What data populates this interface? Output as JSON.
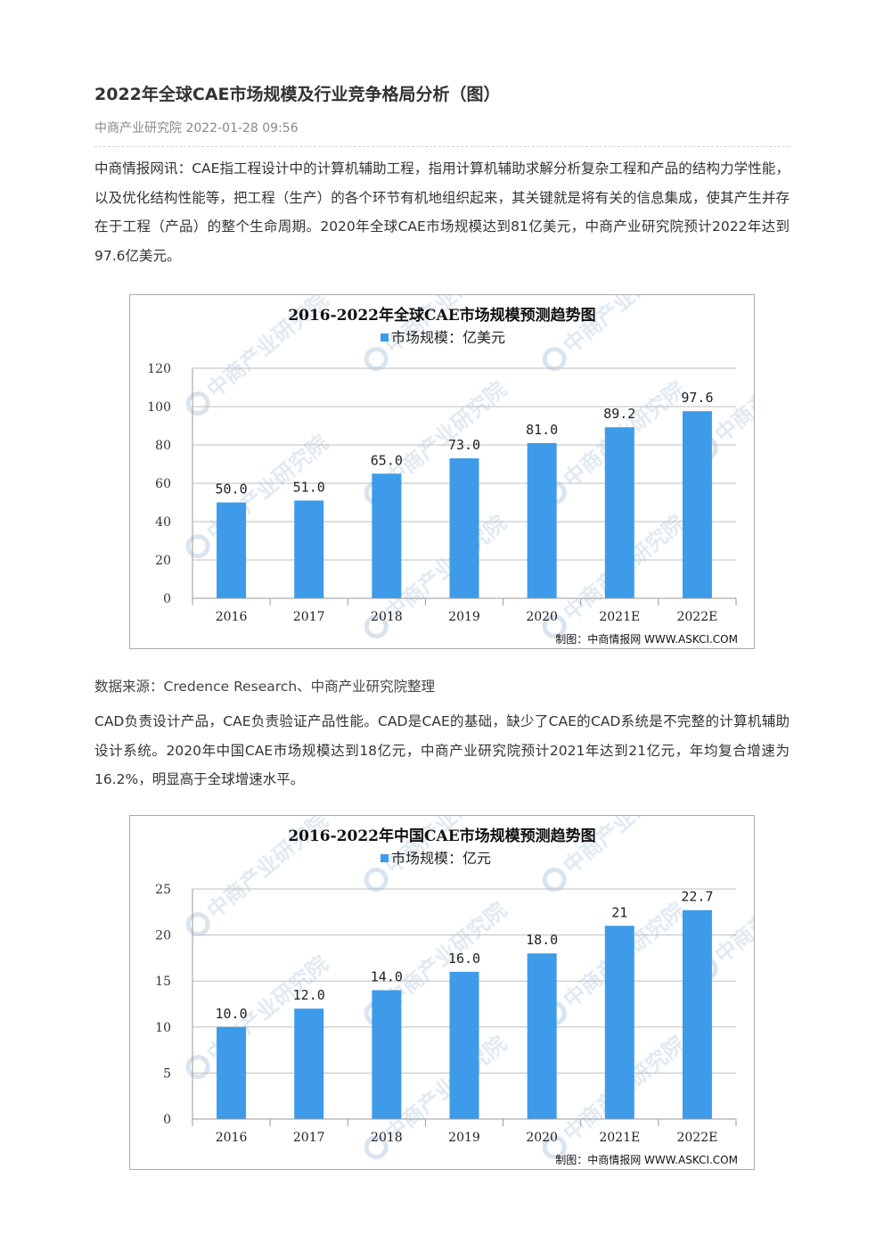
{
  "article": {
    "title": "2022年全球CAE市场规模及行业竞争格局分析（图）",
    "meta": "中商产业研究院 2022-01-28 09:56",
    "para1": "中商情报网讯：CAE指工程设计中的计算机辅助工程，指用计算机辅助求解分析复杂工程和产品的结构力学性能，以及优化结构性能等，把工程（生产）的各个环节有机地组织起来，其关键就是将有关的信息集成，使其产生并存在于工程（产品）的整个生命周期。2020年全球CAE市场规模达到81亿美元，中商产业研究院预计2022年达到97.6亿美元。",
    "source": "数据来源：Credence Research、中商产业研究院整理",
    "para2": "CAD负责设计产品，CAE负责验证产品性能。CAD是CAE的基础，缺少了CAE的CAD系统是不完整的计算机辅助设计系统。2020年中国CAE市场规模达到18亿元，中商产业研究院预计2021年达到21亿元，年均复合增速为16.2%，明显高于全球增速水平。"
  },
  "watermark": "中商产业研究院",
  "chart_data": [
    {
      "type": "bar",
      "title": "2016-2022年全球CAE市场规模预测趋势图",
      "legend": "市场规模：亿美元",
      "categories": [
        "2016",
        "2017",
        "2018",
        "2019",
        "2020",
        "2021E",
        "2022E"
      ],
      "values": [
        50.0,
        51.0,
        65.0,
        73.0,
        81.0,
        89.2,
        97.6
      ],
      "value_labels": [
        "50.0",
        "51.0",
        "65.0",
        "73.0",
        "81.0",
        "89.2",
        "97.6"
      ],
      "yticks": [
        "0",
        "20",
        "40",
        "60",
        "80",
        "100",
        "120"
      ],
      "ylim": [
        0,
        120
      ],
      "credit": "制图：中商情报网 WWW.ASKCI.COM",
      "bar_color": "#3d9bea",
      "grid": true
    },
    {
      "type": "bar",
      "title": "2016-2022年中国CAE市场规模预测趋势图",
      "legend": "市场规模：亿元",
      "categories": [
        "2016",
        "2017",
        "2018",
        "2019",
        "2020",
        "2021E",
        "2022E"
      ],
      "values": [
        10.0,
        12.0,
        14.0,
        16.0,
        18.0,
        21,
        22.7
      ],
      "value_labels": [
        "10.0",
        "12.0",
        "14.0",
        "16.0",
        "18.0",
        "21",
        "22.7"
      ],
      "yticks": [
        "0",
        "5",
        "10",
        "15",
        "20",
        "25"
      ],
      "ylim": [
        0,
        25
      ],
      "credit": "制图：中商情报网 WWW.ASKCI.COM",
      "bar_color": "#3d9bea",
      "grid": true
    }
  ]
}
